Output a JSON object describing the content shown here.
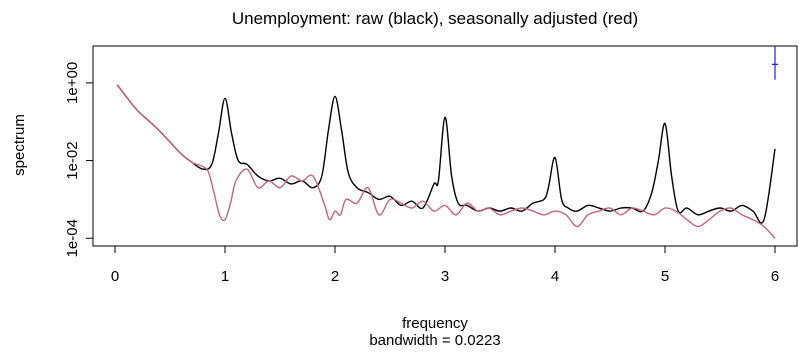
{
  "chart_data": {
    "type": "line",
    "title": "Unemployment: raw (black), seasonally adjusted (red)",
    "xlabel": "frequency",
    "xlabel_sub": "bandwidth = 0.0223",
    "ylabel": "spectrum",
    "y_scale": "log10",
    "xlim": [
      0,
      6
    ],
    "ylim_log10": [
      -4.2,
      0.95
    ],
    "x_ticks": [
      0,
      1,
      2,
      3,
      4,
      5,
      6
    ],
    "x_tick_labels": [
      "0",
      "1",
      "2",
      "3",
      "4",
      "5",
      "6"
    ],
    "y_ticks": [
      1,
      0.01,
      0.0001
    ],
    "y_tick_labels": [
      "1e+00",
      "1e-02",
      "1e-04"
    ],
    "grid": false,
    "legend": "none",
    "series": [
      {
        "color": "#000000",
        "x": [
          0.02,
          0.1,
          0.2,
          0.3,
          0.4,
          0.5,
          0.6,
          0.7,
          0.8,
          0.88,
          0.94,
          1.0,
          1.06,
          1.12,
          1.2,
          1.3,
          1.4,
          1.5,
          1.6,
          1.7,
          1.8,
          1.88,
          1.94,
          2.0,
          2.06,
          2.12,
          2.2,
          2.3,
          2.4,
          2.5,
          2.6,
          2.7,
          2.8,
          2.9,
          2.94,
          3.0,
          3.06,
          3.12,
          3.2,
          3.3,
          3.4,
          3.5,
          3.6,
          3.7,
          3.8,
          3.9,
          3.94,
          4.0,
          4.06,
          4.12,
          4.2,
          4.3,
          4.4,
          4.5,
          4.6,
          4.7,
          4.8,
          4.88,
          4.94,
          5.0,
          5.06,
          5.12,
          5.2,
          5.3,
          5.4,
          5.5,
          5.6,
          5.7,
          5.8,
          5.9,
          6.0
        ],
        "y": [
          0.9,
          0.45,
          0.2,
          0.11,
          0.06,
          0.03,
          0.015,
          0.009,
          0.006,
          0.008,
          0.05,
          0.4,
          0.05,
          0.01,
          0.008,
          0.004,
          0.003,
          0.0035,
          0.0025,
          0.003,
          0.002,
          0.004,
          0.06,
          0.45,
          0.06,
          0.005,
          0.002,
          0.0015,
          0.001,
          0.0012,
          0.0007,
          0.0009,
          0.0006,
          0.0025,
          0.003,
          0.13,
          0.004,
          0.0008,
          0.0007,
          0.0005,
          0.0006,
          0.0005,
          0.0006,
          0.0005,
          0.0008,
          0.001,
          0.002,
          0.012,
          0.001,
          0.0006,
          0.0005,
          0.0007,
          0.0006,
          0.0005,
          0.0006,
          0.0006,
          0.0005,
          0.0015,
          0.01,
          0.09,
          0.004,
          0.0005,
          0.0006,
          0.0004,
          0.0005,
          0.0006,
          0.0005,
          0.0007,
          0.0005,
          0.0003,
          0.02
        ]
      },
      {
        "color": "#c8627a",
        "x": [
          0.02,
          0.1,
          0.2,
          0.3,
          0.4,
          0.5,
          0.6,
          0.7,
          0.8,
          0.85,
          0.9,
          0.95,
          1.0,
          1.05,
          1.1,
          1.2,
          1.3,
          1.4,
          1.5,
          1.6,
          1.7,
          1.8,
          1.9,
          1.95,
          2.0,
          2.05,
          2.1,
          2.2,
          2.3,
          2.4,
          2.5,
          2.6,
          2.7,
          2.8,
          2.9,
          3.0,
          3.1,
          3.2,
          3.3,
          3.4,
          3.5,
          3.6,
          3.7,
          3.8,
          3.9,
          4.0,
          4.1,
          4.2,
          4.3,
          4.4,
          4.5,
          4.6,
          4.7,
          4.8,
          4.9,
          5.0,
          5.1,
          5.2,
          5.3,
          5.4,
          5.5,
          5.6,
          5.7,
          5.8,
          5.9,
          6.0
        ],
        "y": [
          0.9,
          0.45,
          0.2,
          0.11,
          0.06,
          0.03,
          0.015,
          0.009,
          0.007,
          0.005,
          0.0015,
          0.0004,
          0.0003,
          0.0008,
          0.003,
          0.006,
          0.002,
          0.003,
          0.002,
          0.004,
          0.003,
          0.004,
          0.0008,
          0.0003,
          0.0005,
          0.0004,
          0.001,
          0.0008,
          0.002,
          0.0004,
          0.001,
          0.0008,
          0.0006,
          0.0009,
          0.0005,
          0.0007,
          0.0004,
          0.0008,
          0.0005,
          0.0006,
          0.0004,
          0.0005,
          0.0006,
          0.0005,
          0.0004,
          0.0005,
          0.0004,
          0.0002,
          0.0004,
          0.0005,
          0.0006,
          0.0004,
          0.0006,
          0.0005,
          0.0004,
          0.0006,
          0.0005,
          0.0003,
          0.0002,
          0.0003,
          0.0005,
          0.0006,
          0.0004,
          0.0003,
          0.0002,
          0.0001
        ]
      }
    ],
    "ci_bar": {
      "x": 6.0,
      "center": 3.0,
      "low": 1.2,
      "high": 9.0,
      "color": "#1a1aff"
    }
  }
}
